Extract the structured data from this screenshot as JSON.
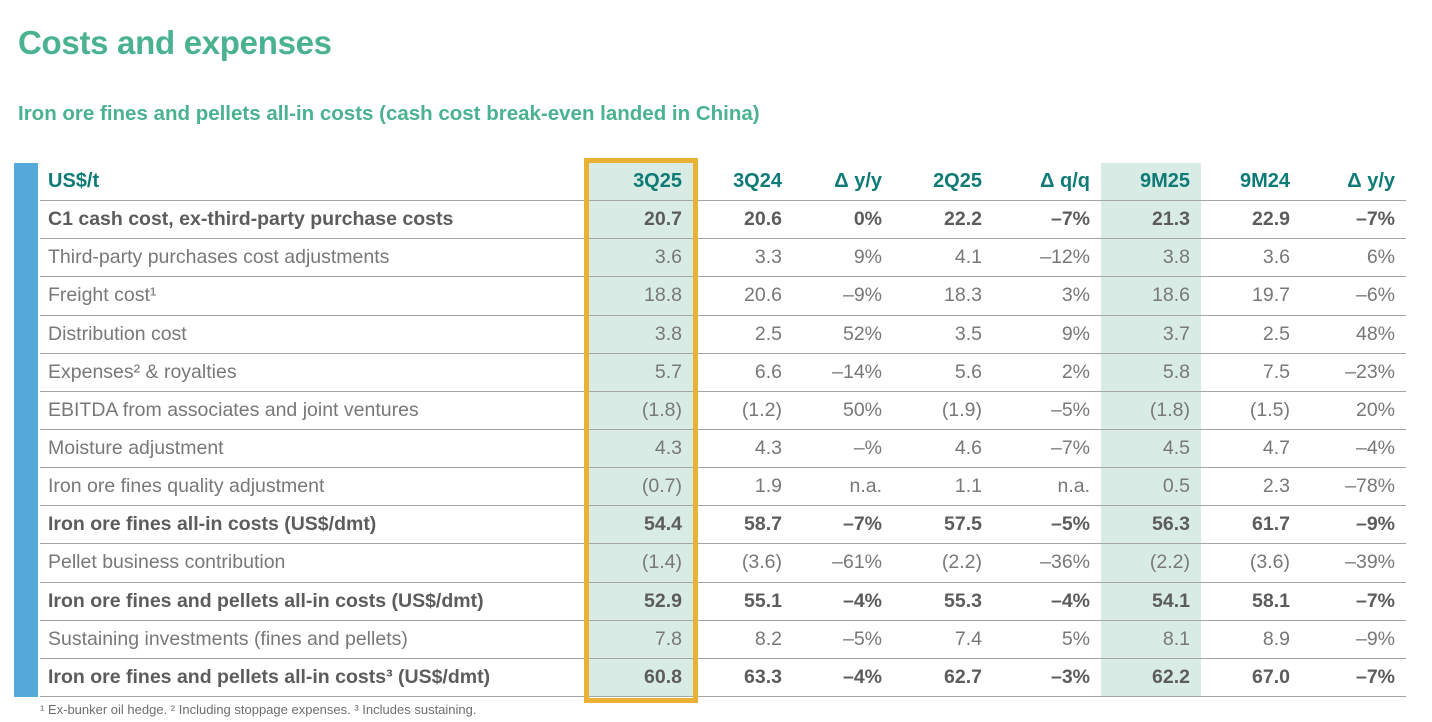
{
  "page": {
    "title": "Costs and expenses",
    "subtitle": "Iron ore fines and pellets all-in costs (cash cost break-even landed in China)",
    "footnote": "¹ Ex-bunker oil hedge. ² Including stoppage expenses. ³ Includes sustaining."
  },
  "colors": {
    "brand_green": "#4ab38e",
    "header_teal": "#0e7b76",
    "mint_highlight": "#d9ebe5",
    "gold_border": "#e9b234",
    "accent_blue": "#55a8da",
    "bold_text": "#5c5c5c",
    "regular_text": "#787878"
  },
  "chart_data": {
    "type": "table",
    "title": "Iron ore fines and pellets all-in costs (cash cost break-even landed in China)",
    "columns": [
      "US$/t",
      "3Q25",
      "3Q24",
      "Δ y/y",
      "2Q25",
      "Δ q/q",
      "9M25",
      "9M24",
      "Δ y/y"
    ],
    "highlight": {
      "boxed_column": "3Q25",
      "shaded_columns": [
        "3Q25",
        "9M25"
      ]
    },
    "rows": [
      {
        "label": "C1 cash cost, ex-third-party purchase costs",
        "bold": true,
        "values": [
          "20.7",
          "20.6",
          "0%",
          "22.2",
          "–7%",
          "21.3",
          "22.9",
          "–7%"
        ]
      },
      {
        "label": "Third-party purchases cost adjustments",
        "bold": false,
        "values": [
          "3.6",
          "3.3",
          "9%",
          "4.1",
          "–12%",
          "3.8",
          "3.6",
          "6%"
        ]
      },
      {
        "label": "Freight cost¹",
        "bold": false,
        "values": [
          "18.8",
          "20.6",
          "–9%",
          "18.3",
          "3%",
          "18.6",
          "19.7",
          "–6%"
        ]
      },
      {
        "label": "Distribution cost",
        "bold": false,
        "values": [
          "3.8",
          "2.5",
          "52%",
          "3.5",
          "9%",
          "3.7",
          "2.5",
          "48%"
        ]
      },
      {
        "label": "Expenses² & royalties",
        "bold": false,
        "values": [
          "5.7",
          "6.6",
          "–14%",
          "5.6",
          "2%",
          "5.8",
          "7.5",
          "–23%"
        ]
      },
      {
        "label": "EBITDA from associates and joint ventures",
        "bold": false,
        "values": [
          "(1.8)",
          "(1.2)",
          "50%",
          "(1.9)",
          "–5%",
          "(1.8)",
          "(1.5)",
          "20%"
        ]
      },
      {
        "label": "Moisture adjustment",
        "bold": false,
        "values": [
          "4.3",
          "4.3",
          "–%",
          "4.6",
          "–7%",
          "4.5",
          "4.7",
          "–4%"
        ]
      },
      {
        "label": "Iron ore fines quality adjustment",
        "bold": false,
        "values": [
          "(0.7)",
          "1.9",
          "n.a.",
          "1.1",
          "n.a.",
          "0.5",
          "2.3",
          "–78%"
        ]
      },
      {
        "label": "Iron ore fines all-in costs (US$/dmt)",
        "bold": true,
        "values": [
          "54.4",
          "58.7",
          "–7%",
          "57.5",
          "–5%",
          "56.3",
          "61.7",
          "–9%"
        ]
      },
      {
        "label": "Pellet business contribution",
        "bold": false,
        "values": [
          "(1.4)",
          "(3.6)",
          "–61%",
          "(2.2)",
          "–36%",
          "(2.2)",
          "(3.6)",
          "–39%"
        ]
      },
      {
        "label": "Iron ore fines and pellets all-in costs (US$/dmt)",
        "bold": true,
        "values": [
          "52.9",
          "55.1",
          "–4%",
          "55.3",
          "–4%",
          "54.1",
          "58.1",
          "–7%"
        ]
      },
      {
        "label": "Sustaining investments (fines and pellets)",
        "bold": false,
        "values": [
          "7.8",
          "8.2",
          "–5%",
          "7.4",
          "5%",
          "8.1",
          "8.9",
          "–9%"
        ]
      },
      {
        "label": "Iron ore fines and pellets all-in costs³ (US$/dmt)",
        "bold": true,
        "values": [
          "60.8",
          "63.3",
          "–4%",
          "62.7",
          "–3%",
          "62.2",
          "67.0",
          "–7%"
        ]
      }
    ]
  }
}
